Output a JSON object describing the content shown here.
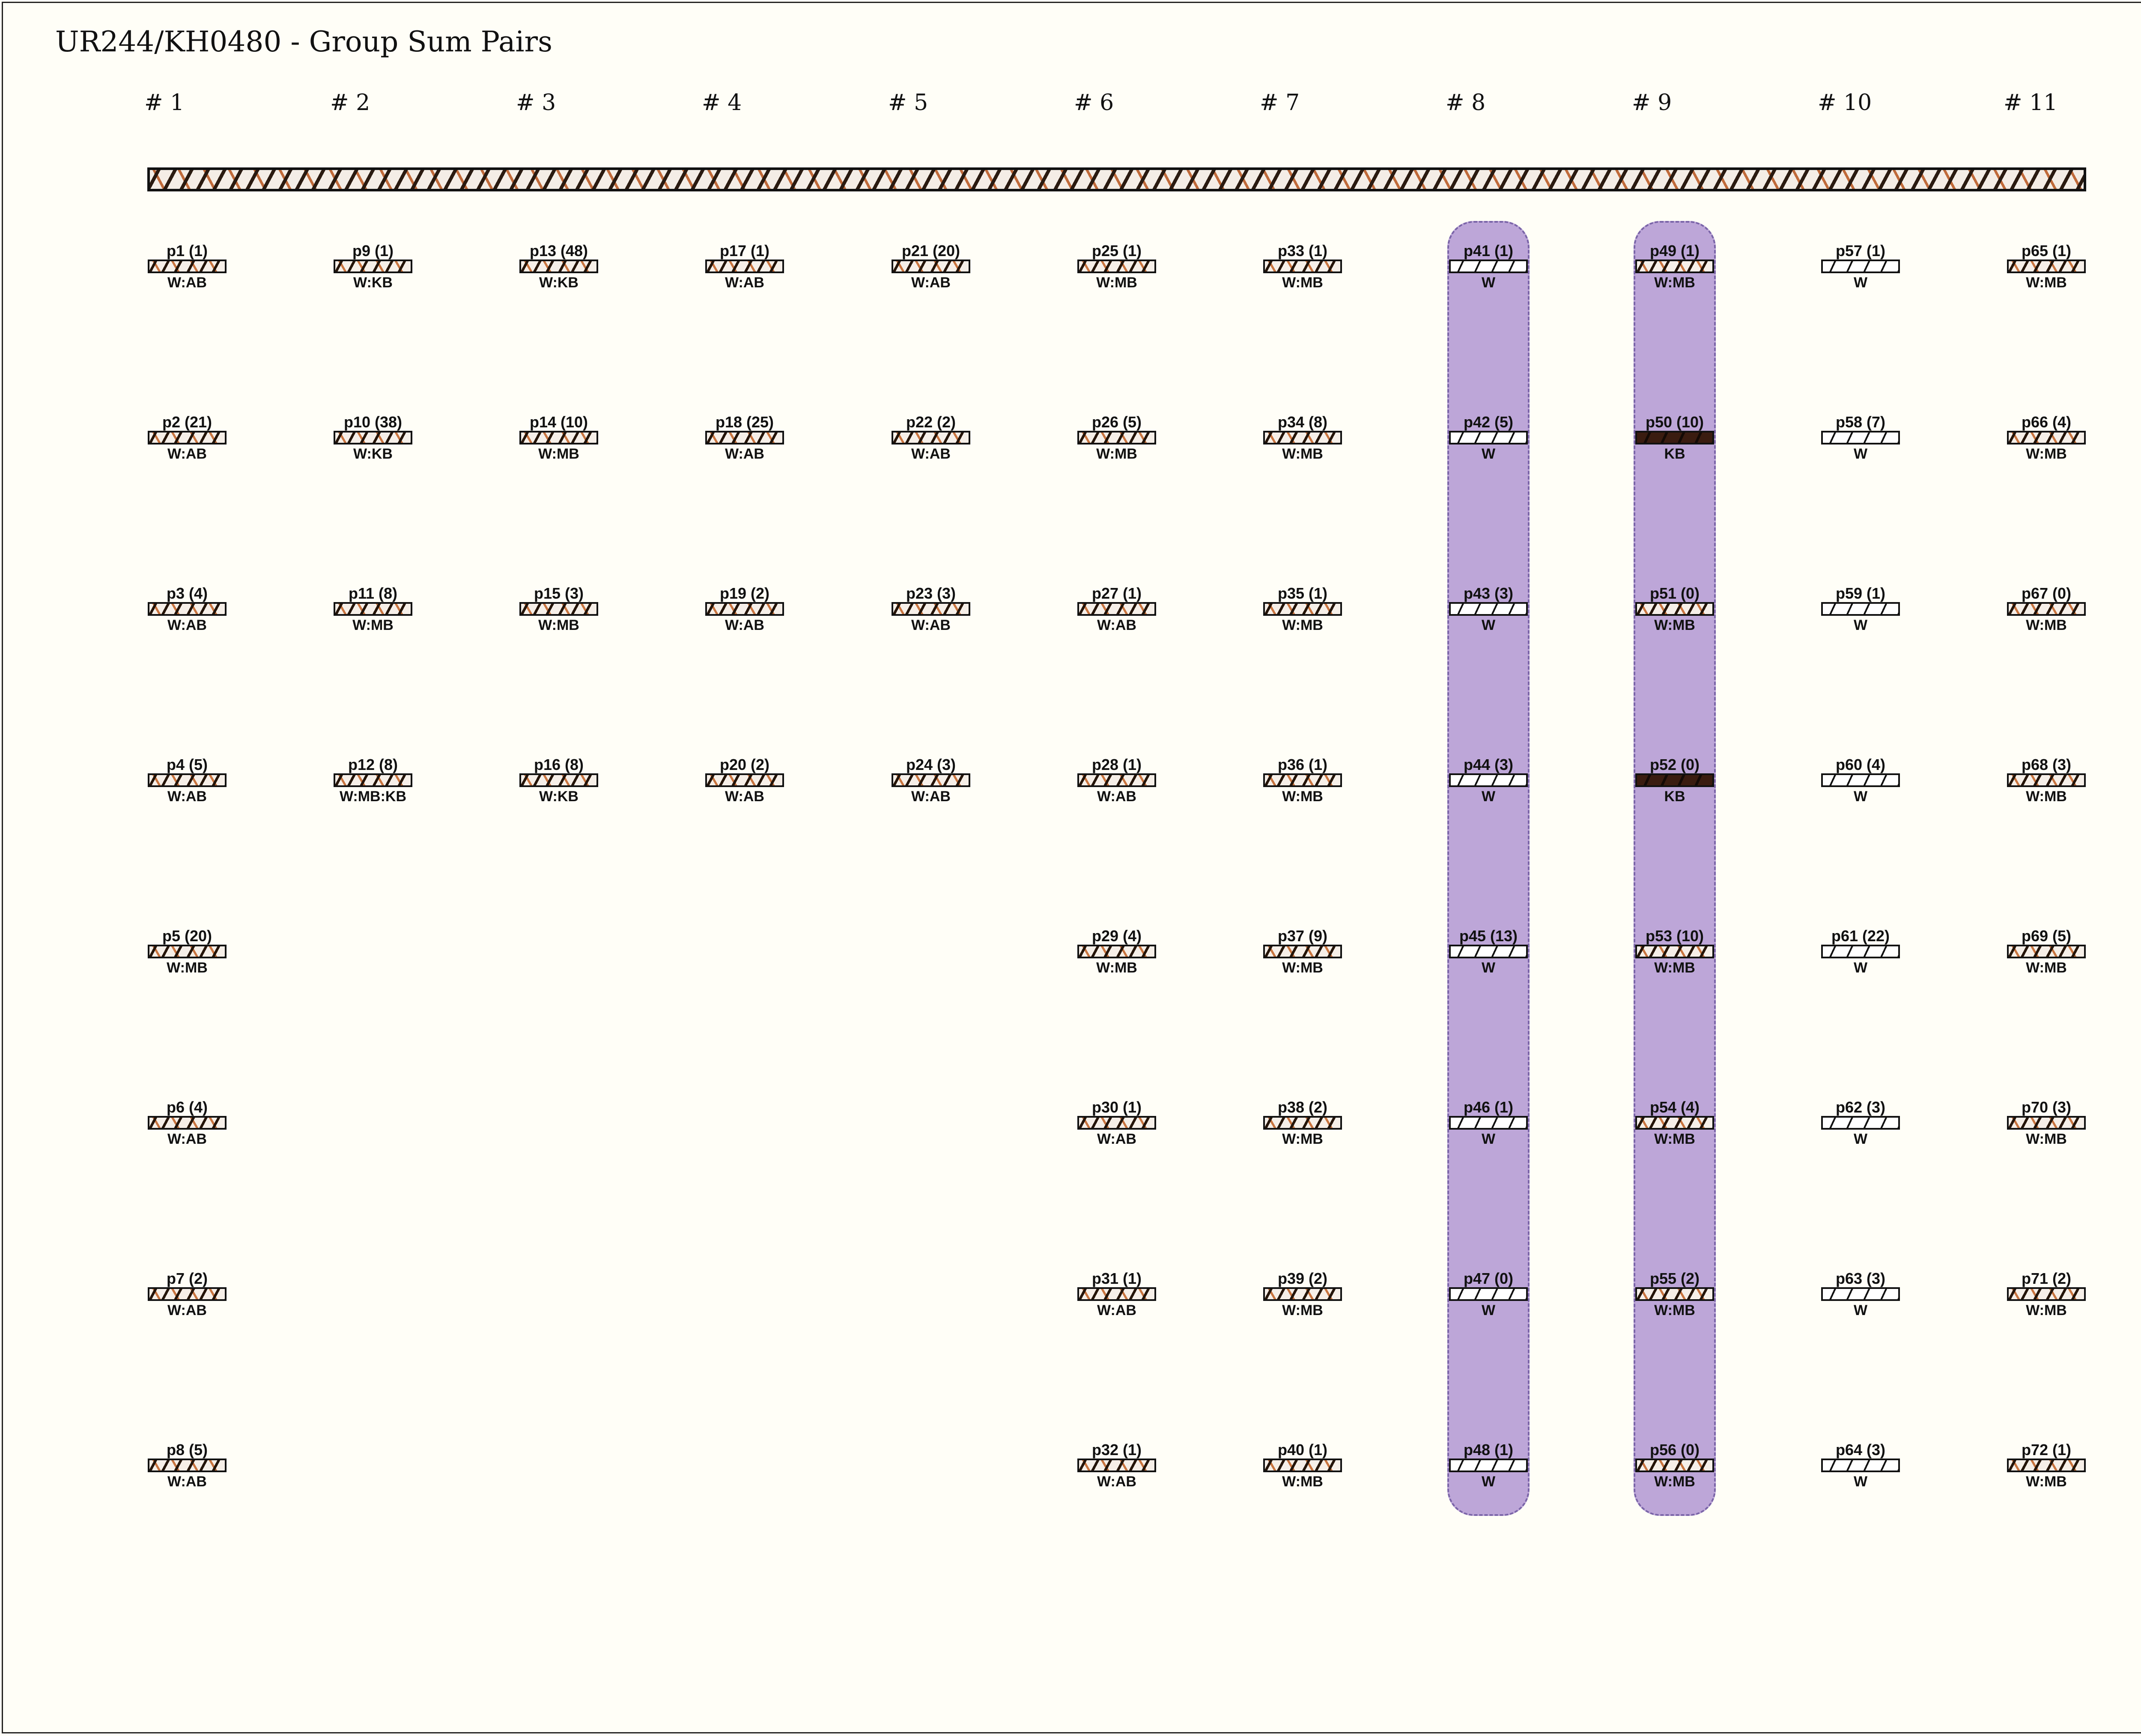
{
  "title": "UR244/KH0480 - Group Sum Pairs",
  "columns": [
    {
      "header": "# 1",
      "items": [
        {
          "label": "p1 (1)",
          "tag": "W:AB",
          "pattern": "mixed"
        },
        {
          "label": "p2 (21)",
          "tag": "W:AB",
          "pattern": "mixed"
        },
        {
          "label": "p3 (4)",
          "tag": "W:AB",
          "pattern": "mixed"
        },
        {
          "label": "p4 (5)",
          "tag": "W:AB",
          "pattern": "mixed"
        },
        {
          "label": "p5 (20)",
          "tag": "W:MB",
          "pattern": "mixed"
        },
        {
          "label": "p6 (4)",
          "tag": "W:AB",
          "pattern": "mixed"
        },
        {
          "label": "p7 (2)",
          "tag": "W:AB",
          "pattern": "mixed"
        },
        {
          "label": "p8 (5)",
          "tag": "W:AB",
          "pattern": "mixed"
        }
      ]
    },
    {
      "header": "# 2",
      "items": [
        {
          "label": "p9 (1)",
          "tag": "W:KB",
          "pattern": "mixed"
        },
        {
          "label": "p10 (38)",
          "tag": "W:KB",
          "pattern": "mixed"
        },
        {
          "label": "p11 (8)",
          "tag": "W:MB",
          "pattern": "mixed"
        },
        {
          "label": "p12 (8)",
          "tag": "W:MB:KB",
          "pattern": "mixed"
        }
      ]
    },
    {
      "header": "# 3",
      "items": [
        {
          "label": "p13 (48)",
          "tag": "W:KB",
          "pattern": "mixed"
        },
        {
          "label": "p14 (10)",
          "tag": "W:MB",
          "pattern": "mixed"
        },
        {
          "label": "p15 (3)",
          "tag": "W:MB",
          "pattern": "mixed"
        },
        {
          "label": "p16 (8)",
          "tag": "W:KB",
          "pattern": "mixed"
        }
      ]
    },
    {
      "header": "# 4",
      "items": [
        {
          "label": "p17 (1)",
          "tag": "W:AB",
          "pattern": "mixed"
        },
        {
          "label": "p18 (25)",
          "tag": "W:AB",
          "pattern": "mixed"
        },
        {
          "label": "p19 (2)",
          "tag": "W:AB",
          "pattern": "mixed"
        },
        {
          "label": "p20 (2)",
          "tag": "W:AB",
          "pattern": "mixed"
        }
      ]
    },
    {
      "header": "# 5",
      "items": [
        {
          "label": "p21 (20)",
          "tag": "W:AB",
          "pattern": "mixed"
        },
        {
          "label": "p22 (2)",
          "tag": "W:AB",
          "pattern": "mixed"
        },
        {
          "label": "p23 (3)",
          "tag": "W:AB",
          "pattern": "mixed"
        },
        {
          "label": "p24 (3)",
          "tag": "W:AB",
          "pattern": "mixed"
        }
      ]
    },
    {
      "header": "# 6",
      "items": [
        {
          "label": "p25 (1)",
          "tag": "W:MB",
          "pattern": "mixed"
        },
        {
          "label": "p26 (5)",
          "tag": "W:MB",
          "pattern": "mixed"
        },
        {
          "label": "p27 (1)",
          "tag": "W:AB",
          "pattern": "mixed"
        },
        {
          "label": "p28 (1)",
          "tag": "W:AB",
          "pattern": "mixed"
        },
        {
          "label": "p29 (4)",
          "tag": "W:MB",
          "pattern": "mixed"
        },
        {
          "label": "p30 (1)",
          "tag": "W:AB",
          "pattern": "mixed"
        },
        {
          "label": "p31 (1)",
          "tag": "W:AB",
          "pattern": "mixed"
        },
        {
          "label": "p32 (1)",
          "tag": "W:AB",
          "pattern": "mixed"
        }
      ]
    },
    {
      "header": "# 7",
      "items": [
        {
          "label": "p33 (1)",
          "tag": "W:MB",
          "pattern": "mixed"
        },
        {
          "label": "p34 (8)",
          "tag": "W:MB",
          "pattern": "mixed"
        },
        {
          "label": "p35 (1)",
          "tag": "W:MB",
          "pattern": "mixed"
        },
        {
          "label": "p36 (1)",
          "tag": "W:MB",
          "pattern": "mixed"
        },
        {
          "label": "p37 (9)",
          "tag": "W:MB",
          "pattern": "mixed"
        },
        {
          "label": "p38 (2)",
          "tag": "W:MB",
          "pattern": "mixed"
        },
        {
          "label": "p39 (2)",
          "tag": "W:MB",
          "pattern": "mixed"
        },
        {
          "label": "p40 (1)",
          "tag": "W:MB",
          "pattern": "mixed"
        }
      ]
    },
    {
      "header": "# 8",
      "highlighted": true,
      "items": [
        {
          "label": "p41 (1)",
          "tag": "W",
          "pattern": "white"
        },
        {
          "label": "p42 (5)",
          "tag": "W",
          "pattern": "white"
        },
        {
          "label": "p43 (3)",
          "tag": "W",
          "pattern": "white"
        },
        {
          "label": "p44 (3)",
          "tag": "W",
          "pattern": "white"
        },
        {
          "label": "p45 (13)",
          "tag": "W",
          "pattern": "white"
        },
        {
          "label": "p46 (1)",
          "tag": "W",
          "pattern": "white"
        },
        {
          "label": "p47 (0)",
          "tag": "W",
          "pattern": "white"
        },
        {
          "label": "p48 (1)",
          "tag": "W",
          "pattern": "white"
        }
      ]
    },
    {
      "header": "# 9",
      "highlighted": true,
      "items": [
        {
          "label": "p49 (1)",
          "tag": "W:MB",
          "pattern": "mixed"
        },
        {
          "label": "p50 (10)",
          "tag": "KB",
          "pattern": "black"
        },
        {
          "label": "p51 (0)",
          "tag": "W:MB",
          "pattern": "mixed"
        },
        {
          "label": "p52 (0)",
          "tag": "KB",
          "pattern": "black"
        },
        {
          "label": "p53 (10)",
          "tag": "W:MB",
          "pattern": "mixed"
        },
        {
          "label": "p54 (4)",
          "tag": "W:MB",
          "pattern": "mixed"
        },
        {
          "label": "p55 (2)",
          "tag": "W:MB",
          "pattern": "mixed"
        },
        {
          "label": "p56 (0)",
          "tag": "W:MB",
          "pattern": "mixed"
        }
      ]
    },
    {
      "header": "# 10",
      "items": [
        {
          "label": "p57 (1)",
          "tag": "W",
          "pattern": "white"
        },
        {
          "label": "p58 (7)",
          "tag": "W",
          "pattern": "white"
        },
        {
          "label": "p59 (1)",
          "tag": "W",
          "pattern": "white"
        },
        {
          "label": "p60 (4)",
          "tag": "W",
          "pattern": "white"
        },
        {
          "label": "p61 (22)",
          "tag": "W",
          "pattern": "white"
        },
        {
          "label": "p62 (3)",
          "tag": "W",
          "pattern": "white"
        },
        {
          "label": "p63 (3)",
          "tag": "W",
          "pattern": "white"
        },
        {
          "label": "p64 (3)",
          "tag": "W",
          "pattern": "white"
        }
      ]
    },
    {
      "header": "# 11",
      "items": [
        {
          "label": "p65 (1)",
          "tag": "W:MB",
          "pattern": "mixed"
        },
        {
          "label": "p66 (4)",
          "tag": "W:MB",
          "pattern": "mixed"
        },
        {
          "label": "p67 (0)",
          "tag": "W:MB",
          "pattern": "mixed"
        },
        {
          "label": "p68 (3)",
          "tag": "W:MB",
          "pattern": "mixed"
        },
        {
          "label": "p69 (5)",
          "tag": "W:MB",
          "pattern": "mixed"
        },
        {
          "label": "p70 (3)",
          "tag": "W:MB",
          "pattern": "mixed"
        },
        {
          "label": "p71 (2)",
          "tag": "W:MB",
          "pattern": "mixed"
        },
        {
          "label": "p72 (1)",
          "tag": "W:MB",
          "pattern": "mixed"
        }
      ]
    }
  ],
  "colors": {
    "background": "#fffef7",
    "highlight": "#bda6d8",
    "highlight_border": "#7a64a8",
    "accent_orange": "#c8743f",
    "dark_brown": "#3a1c10"
  }
}
